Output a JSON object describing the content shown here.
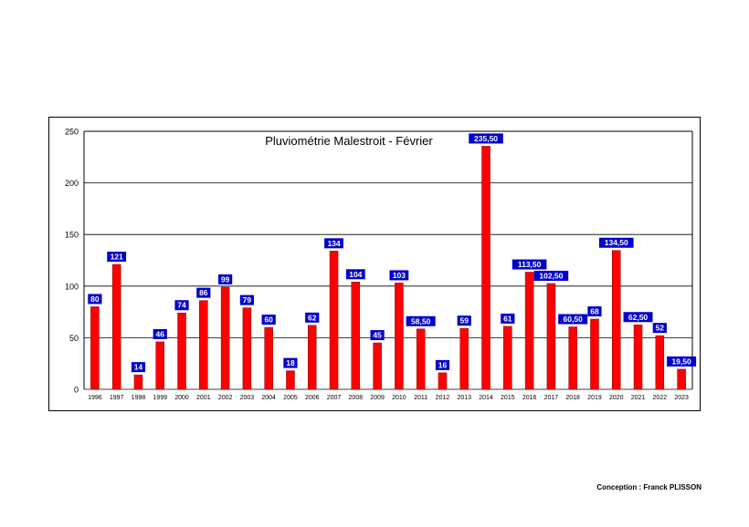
{
  "chart_data": {
    "type": "bar",
    "title": "Pluviométrie Malestroit - Février",
    "xlabel": "",
    "ylabel": "",
    "ylim": [
      0,
      250
    ],
    "yticks": [
      "0",
      "50",
      "100",
      "150",
      "200",
      "250"
    ],
    "grid": true,
    "categories": [
      "1996",
      "1997",
      "1998",
      "1999",
      "2000",
      "2001",
      "2002",
      "2003",
      "2004",
      "2005",
      "2006",
      "2007",
      "2008",
      "2009",
      "2010",
      "2011",
      "2012",
      "2013",
      "2014",
      "2015",
      "2016",
      "2017",
      "2018",
      "2019",
      "2020",
      "2021",
      "2022",
      "2023"
    ],
    "values": [
      80,
      121,
      14,
      46,
      74,
      86,
      99,
      79,
      60,
      18,
      62,
      134,
      104,
      45,
      103,
      58.5,
      16,
      59,
      235.5,
      61,
      113.5,
      102.5,
      60.5,
      68,
      134.5,
      62.5,
      52,
      19.5
    ],
    "data_labels": [
      "80",
      "121",
      "14",
      "46",
      "74",
      "86",
      "99",
      "79",
      "60",
      "18",
      "62",
      "134",
      "104",
      "45",
      "103",
      "58,50",
      "16",
      "59",
      "235,50",
      "61",
      "113,50",
      "102,50",
      "60,50",
      "68",
      "134,50",
      "62,50",
      "52",
      "19,50"
    ],
    "colors": {
      "bar": "#ff0000",
      "label_bg": "#0000cc",
      "label_text": "#ffffff",
      "grid": "#000000"
    }
  },
  "footer": {
    "credit": "Conception : Franck PLISSON"
  }
}
